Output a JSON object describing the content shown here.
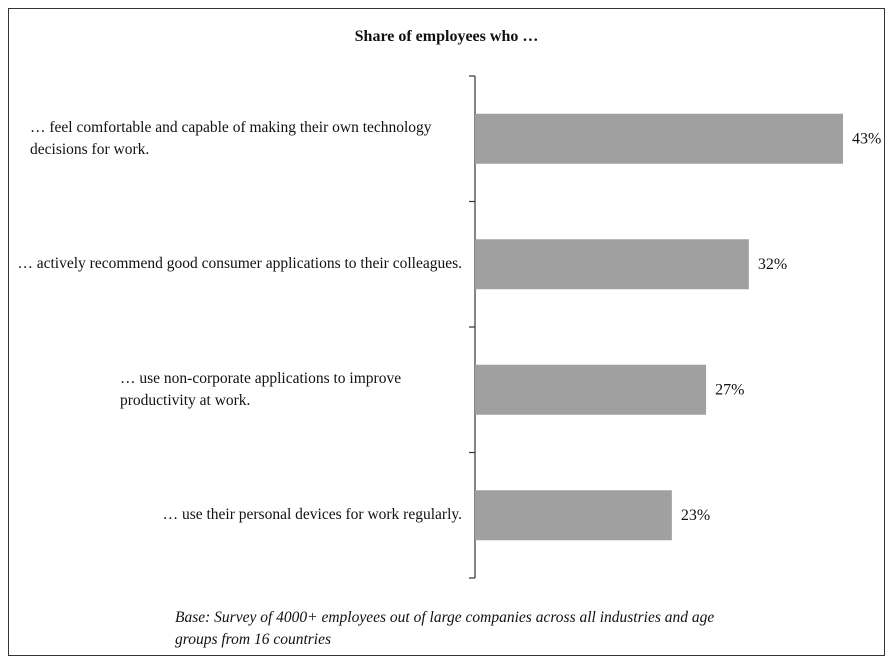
{
  "chart_data": {
    "type": "barh",
    "title": "Share of employees who …",
    "categories": [
      "… feel comfortable and capable of making their own technology decisions for work.",
      "… actively recommend good consumer applications to their colleagues.",
      "… use non-corporate applications to improve productivity at work.",
      "… use their personal devices for work regularly."
    ],
    "values": [
      43,
      32,
      27,
      23
    ],
    "value_labels": [
      "43%",
      "32%",
      "27%",
      "23%"
    ],
    "color": "#a0a0a1",
    "footnote": "Base: Survey of 4000+ employees out of large companies across all industries and age groups from 16 countries"
  }
}
